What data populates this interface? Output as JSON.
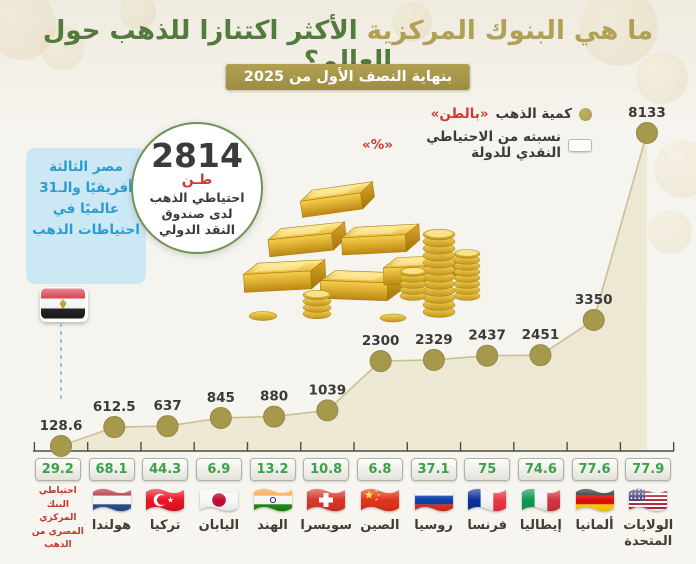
{
  "title": {
    "part_gold": "ما هي البنوك المركزية",
    "part_green": "الأكثر اكتنازا للذهب حول العالم؟"
  },
  "subtitle": "بنهاية النصف الأول من 2025",
  "legend": {
    "tons": {
      "label": "كمية الذهب",
      "unit": "«بالطن»",
      "marker": "gold-dot"
    },
    "pct": {
      "label": "نسبته من الاحتياطي النقدي للدولة",
      "unit": "«%»",
      "marker": "white-box"
    }
  },
  "egypt_note": "مصر الثالثة أفريقيًا والـ31 عالميًا في احتياطات الذهب",
  "imf_badge": {
    "value": "2814",
    "unit": "طـن",
    "caption": "احتياطي الذهب لدى صندوق النقد الدولي"
  },
  "chart_data": {
    "type": "area",
    "title": "ما هي البنوك المركزية الأكثر اكتنازا للذهب حول العالم؟ بنهاية النصف الأول من 2025",
    "categories": [
      "مصر",
      "هولندا",
      "تركيا",
      "اليابان",
      "الهند",
      "سويسرا",
      "الصين",
      "روسيا",
      "فرنسا",
      "إيطاليا",
      "ألمانيا",
      "الولايات المتحدة"
    ],
    "series": [
      {
        "name": "كمية الذهب «بالطن»",
        "values": [
          128.6,
          612.5,
          637,
          845,
          880,
          1039,
          2300,
          2329,
          2437,
          2451,
          3350,
          8133
        ]
      },
      {
        "name": "نسبته من الاحتياطي النقدي للدولة «%»",
        "values": [
          29.2,
          68.1,
          44.3,
          6.9,
          13.2,
          10.8,
          6.8,
          37.1,
          75,
          74.6,
          77.6,
          77.9
        ]
      }
    ],
    "legend_position": "top-right",
    "grid": false,
    "point_color": "#a6994b",
    "line_color": "#c9c096",
    "area_color": "#e9e4c9"
  },
  "countries": [
    {
      "name": "مصر",
      "label": null,
      "caption": "احتياطي البنك المركزي المصري من الذهب",
      "tons": 128.6,
      "pct": 29.2,
      "flag": "eg",
      "flag_in_chart": true
    },
    {
      "name": "هولندا",
      "label": "هولندا",
      "tons": 612.5,
      "pct": 68.1,
      "flag": "nl"
    },
    {
      "name": "تركيا",
      "label": "تركيا",
      "tons": 637,
      "pct": 44.3,
      "flag": "tr"
    },
    {
      "name": "اليابان",
      "label": "اليابان",
      "tons": 845,
      "pct": 6.9,
      "flag": "jp"
    },
    {
      "name": "الهند",
      "label": "الهند",
      "tons": 880,
      "pct": 13.2,
      "flag": "in"
    },
    {
      "name": "سويسرا",
      "label": "سويسرا",
      "tons": 1039,
      "pct": 10.8,
      "flag": "ch"
    },
    {
      "name": "الصين",
      "label": "الصين",
      "tons": 2300,
      "pct": 6.8,
      "flag": "cn"
    },
    {
      "name": "روسيا",
      "label": "روسيا",
      "tons": 2329,
      "pct": 37.1,
      "flag": "ru"
    },
    {
      "name": "فرنسا",
      "label": "فرنسا",
      "tons": 2437,
      "pct": 75,
      "flag": "fr"
    },
    {
      "name": "إيطاليا",
      "label": "إيطاليا",
      "tons": 2451,
      "pct": 74.6,
      "flag": "it"
    },
    {
      "name": "ألمانيا",
      "label": "ألمانيا",
      "tons": 3350,
      "pct": 77.6,
      "flag": "de"
    },
    {
      "name": "الولايات المتحدة",
      "label": "الولايات المتحدة",
      "tons": 8133,
      "pct": 77.9,
      "flag": "us"
    }
  ],
  "colors": {
    "title_gold": "#b1a055",
    "title_green": "#537b3e",
    "badge_gold": "#a6954b",
    "point_gold": "#a6994b",
    "value_green": "#3ba04a",
    "accent_red": "#cc3b35",
    "egypt_blue": "#2b9cd0"
  }
}
